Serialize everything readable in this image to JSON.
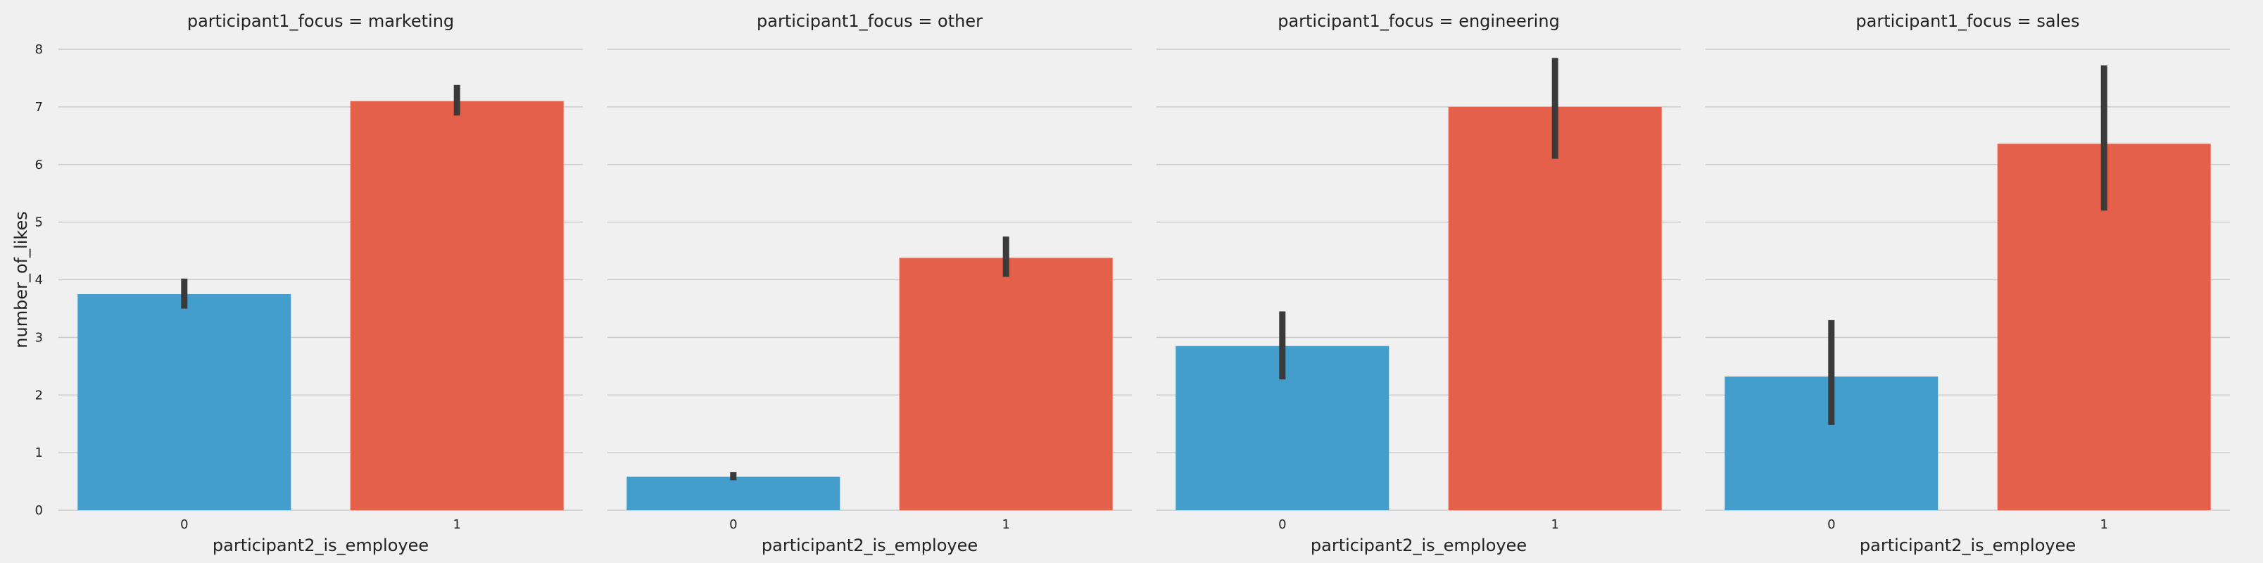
{
  "chart_data": {
    "type": "bar",
    "y_axis_title": "number_of_likes",
    "x_axis_title": "participant2_is_employee",
    "categories": [
      "0",
      "1"
    ],
    "ylim": [
      0,
      8
    ],
    "yticks": [
      "0",
      "1",
      "2",
      "3",
      "4",
      "5",
      "6",
      "7",
      "8"
    ],
    "grid": true,
    "colors": [
      "#449ecb",
      "#e5604a"
    ],
    "error_bar_color": "#3a3a3a",
    "background": "#f0f0f0",
    "panels": [
      {
        "title": "participant1_focus = marketing",
        "values": [
          3.75,
          7.1
        ],
        "ci_low": [
          3.5,
          6.85
        ],
        "ci_high": [
          4.02,
          7.38
        ]
      },
      {
        "title": "participant1_focus = other",
        "values": [
          0.58,
          4.38
        ],
        "ci_low": [
          0.52,
          4.05
        ],
        "ci_high": [
          0.66,
          4.75
        ]
      },
      {
        "title": "participant1_focus = engineering",
        "values": [
          2.85,
          7.0
        ],
        "ci_low": [
          2.27,
          6.1
        ],
        "ci_high": [
          3.45,
          7.85
        ]
      },
      {
        "title": "participant1_focus = sales",
        "values": [
          2.32,
          6.36
        ],
        "ci_low": [
          1.48,
          5.2
        ],
        "ci_high": [
          3.3,
          7.72
        ]
      }
    ]
  }
}
